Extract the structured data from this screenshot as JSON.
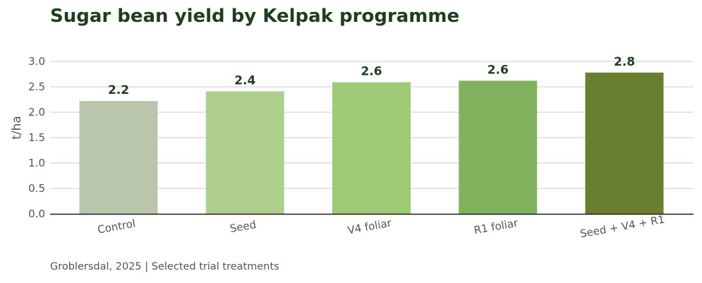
{
  "chart_data": {
    "type": "bar",
    "title": "Sugar bean yield by Kelpak programme",
    "footer": "Groblersdal, 2025 | Selected trial treatments",
    "xlabel": "",
    "ylabel": "t/ha",
    "ylim": [
      0,
      3.0
    ],
    "yticks": [
      "0.0",
      "0.5",
      "1.0",
      "1.5",
      "2.0",
      "2.5",
      "3.0"
    ],
    "grid": true,
    "categories": [
      "Control",
      "Seed",
      "V4 foliar",
      "R1 foliar",
      "Seed + V4 + R1"
    ],
    "values": [
      2.22,
      2.41,
      2.59,
      2.62,
      2.78
    ],
    "value_labels": [
      "2.2",
      "2.4",
      "2.6",
      "2.6",
      "2.8"
    ],
    "colors": [
      "#bac6ac",
      "#afcf8f",
      "#9ecb76",
      "#82b15e",
      "#6a7f30"
    ]
  }
}
